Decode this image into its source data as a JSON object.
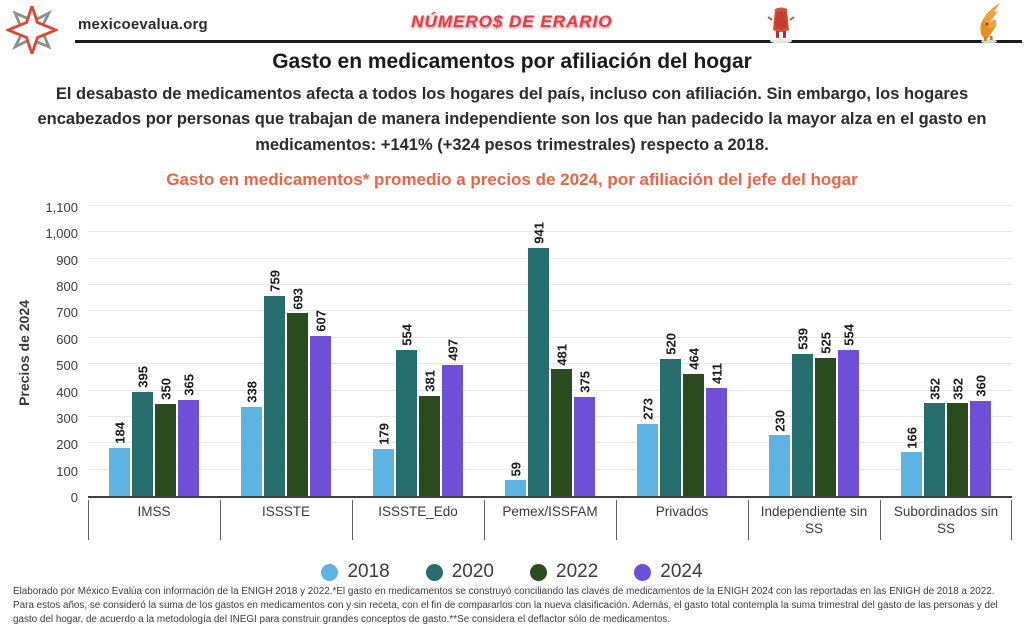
{
  "header": {
    "site": "mexicoevalua.org",
    "brand_text": "NÚMERO$ DE ERARIO"
  },
  "title": "Gasto en medicamentos por afiliación del hogar",
  "subtitle": "El desabasto de medicamentos afecta a todos los hogares del país, incluso con afiliación. Sin embargo, los hogares encabezados por personas que trabajan de manera independiente son los que han padecido la mayor alza en el gasto en medicamentos: +141% (+324 pesos trimestrales) respecto a 2018.",
  "chart_data": {
    "type": "bar",
    "title": "Gasto en medicamentos* promedio a precios de 2024, por afiliación del jefe del hogar",
    "ylabel": "Precios de 2024",
    "ylim": [
      0,
      1100
    ],
    "ytick_step": 100,
    "grid": true,
    "legend_position": "bottom",
    "value_labels": "rotated-90-above-bars",
    "categories": [
      "IMSS",
      "ISSSTE",
      "ISSSTE_Edo",
      "Pemex/ISSFAM",
      "Privados",
      "Independiente sin SS",
      "Subordinados sin SS"
    ],
    "series": [
      {
        "name": "2018",
        "color": "#5fb3e2",
        "values": [
          184,
          338,
          179,
          59,
          273,
          230,
          166
        ]
      },
      {
        "name": "2020",
        "color": "#266e6d",
        "values": [
          395,
          759,
          554,
          941,
          520,
          539,
          352
        ]
      },
      {
        "name": "2022",
        "color": "#2a4b1e",
        "values": [
          350,
          693,
          381,
          481,
          464,
          525,
          352
        ]
      },
      {
        "name": "2024",
        "color": "#6d50d7",
        "values": [
          365,
          607,
          497,
          375,
          411,
          554,
          360
        ]
      }
    ]
  },
  "footnote": "Elaborado por México Evalúa con información de la ENIGH 2018 y 2022.*El gasto en medicamentos se construyó conciliando las claves de medicamentos de la ENIGH 2024 con las reportadas en las ENIGH de 2018 a 2022. Para estos años, se consideró la suma de los gastos en medicamentos con y sin receta, con el fin de compararlos con la nueva clasificación. Además, el gasto total contempla la suma trimestral del gasto de las personas y del gasto del hogar, de acuerdo a la metodología del INEGI para construir grandes conceptos de gasto.**Se considera el deflactor sólo de medicamentos."
}
